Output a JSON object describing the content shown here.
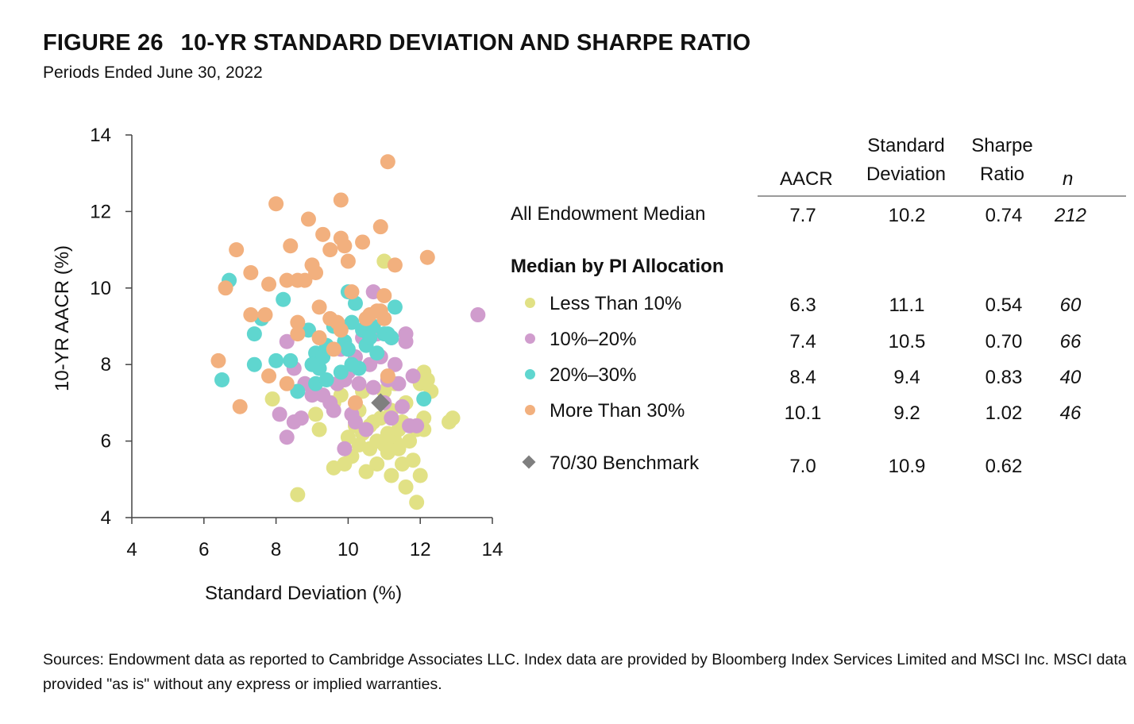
{
  "title": {
    "number": "FIGURE 26",
    "text": "10-YR STANDARD DEVIATION AND SHARPE RATIO"
  },
  "subtitle": "Periods Ended June 30, 2022",
  "chart_data": {
    "type": "scatter",
    "xlabel": "Standard Deviation (%)",
    "ylabel": "10-YR AACR (%)",
    "xlim": [
      4,
      14
    ],
    "ylim": [
      4,
      14
    ],
    "xticks": [
      "4",
      "6",
      "8",
      "10",
      "12",
      "14"
    ],
    "yticks": [
      "4",
      "6",
      "8",
      "10",
      "12",
      "14"
    ],
    "grid": false,
    "series": [
      {
        "name": "Less Than 10%",
        "color": "#e1e185",
        "points": [
          [
            7.9,
            7.1
          ],
          [
            8.6,
            4.6
          ],
          [
            9.1,
            6.7
          ],
          [
            9.2,
            6.3
          ],
          [
            9.6,
            5.3
          ],
          [
            9.8,
            7.2
          ],
          [
            9.9,
            5.4
          ],
          [
            10.0,
            6.1
          ],
          [
            10.1,
            5.6
          ],
          [
            10.3,
            6.8
          ],
          [
            10.3,
            5.9
          ],
          [
            10.4,
            6.2
          ],
          [
            10.5,
            5.2
          ],
          [
            10.6,
            6.4
          ],
          [
            10.6,
            5.8
          ],
          [
            10.7,
            6.5
          ],
          [
            10.8,
            5.4
          ],
          [
            10.8,
            6.0
          ],
          [
            10.9,
            6.6
          ],
          [
            11.0,
            7.3
          ],
          [
            11.0,
            5.9
          ],
          [
            11.1,
            6.2
          ],
          [
            11.1,
            5.7
          ],
          [
            11.2,
            6.8
          ],
          [
            11.2,
            5.1
          ],
          [
            11.3,
            6.0
          ],
          [
            11.4,
            5.8
          ],
          [
            11.4,
            6.3
          ],
          [
            11.5,
            6.5
          ],
          [
            11.5,
            5.4
          ],
          [
            11.6,
            4.8
          ],
          [
            11.7,
            6.0
          ],
          [
            11.8,
            5.5
          ],
          [
            11.9,
            6.3
          ],
          [
            11.9,
            4.4
          ],
          [
            12.0,
            5.1
          ],
          [
            12.0,
            7.5
          ],
          [
            12.1,
            7.8
          ],
          [
            12.1,
            6.6
          ],
          [
            12.1,
            6.3
          ],
          [
            12.2,
            7.6
          ],
          [
            12.3,
            7.3
          ],
          [
            12.8,
            6.5
          ],
          [
            12.9,
            6.6
          ],
          [
            11.0,
            10.7
          ],
          [
            10.2,
            6.4
          ],
          [
            11.3,
            7.5
          ],
          [
            9.6,
            7.0
          ],
          [
            10.4,
            7.3
          ],
          [
            11.6,
            7.0
          ]
        ]
      },
      {
        "name": "10%–20%",
        "color": "#d09ccd",
        "points": [
          [
            8.1,
            6.7
          ],
          [
            8.3,
            6.1
          ],
          [
            8.3,
            8.6
          ],
          [
            8.5,
            7.9
          ],
          [
            8.5,
            6.5
          ],
          [
            8.7,
            6.6
          ],
          [
            8.8,
            7.5
          ],
          [
            9.0,
            7.2
          ],
          [
            9.1,
            8.0
          ],
          [
            9.3,
            7.2
          ],
          [
            9.5,
            7.0
          ],
          [
            9.6,
            6.8
          ],
          [
            9.7,
            7.5
          ],
          [
            9.8,
            8.4
          ],
          [
            9.9,
            7.6
          ],
          [
            10.0,
            7.8
          ],
          [
            10.1,
            6.7
          ],
          [
            10.2,
            8.2
          ],
          [
            10.2,
            6.5
          ],
          [
            10.3,
            7.5
          ],
          [
            10.4,
            8.7
          ],
          [
            10.5,
            6.3
          ],
          [
            10.6,
            8.0
          ],
          [
            10.7,
            9.9
          ],
          [
            10.7,
            7.4
          ],
          [
            10.8,
            8.8
          ],
          [
            10.9,
            8.2
          ],
          [
            11.0,
            7.0
          ],
          [
            11.1,
            7.6
          ],
          [
            11.2,
            6.6
          ],
          [
            11.2,
            8.7
          ],
          [
            11.4,
            7.5
          ],
          [
            11.5,
            6.9
          ],
          [
            11.6,
            8.6
          ],
          [
            11.6,
            8.8
          ],
          [
            11.7,
            6.4
          ],
          [
            11.8,
            7.7
          ],
          [
            11.9,
            6.4
          ],
          [
            13.6,
            9.3
          ],
          [
            9.9,
            5.8
          ],
          [
            10.5,
            9.0
          ],
          [
            11.3,
            8.0
          ]
        ]
      },
      {
        "name": "20%–30%",
        "color": "#5fd6cf",
        "points": [
          [
            6.5,
            7.6
          ],
          [
            6.7,
            10.2
          ],
          [
            7.4,
            8.0
          ],
          [
            7.4,
            8.8
          ],
          [
            7.6,
            9.2
          ],
          [
            8.0,
            8.1
          ],
          [
            8.2,
            9.7
          ],
          [
            8.4,
            8.1
          ],
          [
            8.6,
            7.3
          ],
          [
            8.9,
            8.9
          ],
          [
            9.1,
            8.3
          ],
          [
            9.1,
            7.5
          ],
          [
            9.2,
            7.9
          ],
          [
            9.3,
            8.2
          ],
          [
            9.4,
            8.5
          ],
          [
            9.6,
            9.0
          ],
          [
            9.8,
            7.8
          ],
          [
            9.9,
            8.6
          ],
          [
            10.0,
            9.9
          ],
          [
            10.0,
            8.4
          ],
          [
            10.1,
            9.1
          ],
          [
            10.2,
            9.6
          ],
          [
            10.3,
            7.9
          ],
          [
            10.4,
            8.9
          ],
          [
            10.5,
            8.5
          ],
          [
            10.6,
            8.7
          ],
          [
            10.7,
            9.0
          ],
          [
            10.8,
            8.3
          ],
          [
            11.0,
            8.8
          ],
          [
            11.1,
            8.8
          ],
          [
            11.2,
            8.7
          ],
          [
            11.3,
            9.5
          ],
          [
            12.1,
            7.1
          ],
          [
            9.4,
            7.6
          ],
          [
            10.1,
            8.0
          ],
          [
            9.0,
            8.0
          ]
        ]
      },
      {
        "name": "More Than 30%",
        "color": "#f2b07e",
        "points": [
          [
            6.4,
            8.1
          ],
          [
            6.6,
            10.0
          ],
          [
            6.9,
            11.0
          ],
          [
            7.0,
            6.9
          ],
          [
            7.3,
            9.3
          ],
          [
            7.3,
            10.4
          ],
          [
            7.7,
            9.3
          ],
          [
            7.8,
            7.7
          ],
          [
            7.8,
            10.1
          ],
          [
            8.0,
            12.2
          ],
          [
            8.3,
            10.2
          ],
          [
            8.4,
            11.1
          ],
          [
            8.6,
            10.2
          ],
          [
            8.6,
            8.8
          ],
          [
            8.6,
            9.1
          ],
          [
            8.8,
            10.2
          ],
          [
            8.9,
            11.8
          ],
          [
            9.0,
            10.6
          ],
          [
            9.1,
            10.4
          ],
          [
            9.2,
            9.5
          ],
          [
            9.2,
            8.7
          ],
          [
            9.3,
            11.4
          ],
          [
            9.5,
            11.0
          ],
          [
            9.5,
            9.2
          ],
          [
            9.6,
            8.4
          ],
          [
            9.7,
            9.1
          ],
          [
            9.8,
            11.3
          ],
          [
            9.8,
            12.3
          ],
          [
            9.9,
            11.1
          ],
          [
            10.0,
            10.7
          ],
          [
            10.1,
            9.9
          ],
          [
            10.4,
            11.2
          ],
          [
            10.6,
            9.3
          ],
          [
            10.8,
            9.4
          ],
          [
            10.9,
            11.6
          ],
          [
            10.9,
            9.4
          ],
          [
            11.0,
            9.8
          ],
          [
            11.1,
            13.3
          ],
          [
            11.1,
            7.7
          ],
          [
            11.3,
            10.6
          ],
          [
            12.2,
            10.8
          ],
          [
            8.3,
            7.5
          ],
          [
            9.8,
            8.9
          ],
          [
            10.5,
            9.2
          ],
          [
            10.2,
            7.0
          ],
          [
            11.0,
            9.2
          ]
        ]
      },
      {
        "name": "70/30 Benchmark",
        "color": "#7f7f7f",
        "marker": "diamond",
        "points": [
          [
            10.9,
            7.0
          ]
        ]
      }
    ]
  },
  "table": {
    "headers": {
      "aacr": "AACR",
      "std_1": "Standard",
      "std_2": "Deviation",
      "sharpe_1": "Sharpe",
      "sharpe_2": "Ratio",
      "n": "n"
    },
    "all": {
      "label": "All Endowment Median",
      "aacr": "7.7",
      "std": "10.2",
      "sharpe": "0.74",
      "n": "212"
    },
    "section_label": "Median by PI Allocation",
    "rows": [
      {
        "label": "Less Than 10%",
        "color": "#e1e185",
        "aacr": "6.3",
        "std": "11.1",
        "sharpe": "0.54",
        "n": "60"
      },
      {
        "label": "10%–20%",
        "color": "#d09ccd",
        "aacr": "7.4",
        "std": "10.5",
        "sharpe": "0.70",
        "n": "66"
      },
      {
        "label": "20%–30%",
        "color": "#5fd6cf",
        "aacr": "8.4",
        "std": "9.4",
        "sharpe": "0.83",
        "n": "40"
      },
      {
        "label": "More Than 30%",
        "color": "#f2b07e",
        "aacr": "10.1",
        "std": "9.2",
        "sharpe": "1.02",
        "n": "46"
      }
    ],
    "benchmark": {
      "label": "70/30 Benchmark",
      "color": "#7f7f7f",
      "aacr": "7.0",
      "std": "10.9",
      "sharpe": "0.62"
    }
  },
  "sources": "Sources: Endowment data as reported to Cambridge Associates LLC. Index data are provided by Bloomberg Index Services Limited and MSCI Inc. MSCI data provided \"as is\" without any express or implied warranties."
}
